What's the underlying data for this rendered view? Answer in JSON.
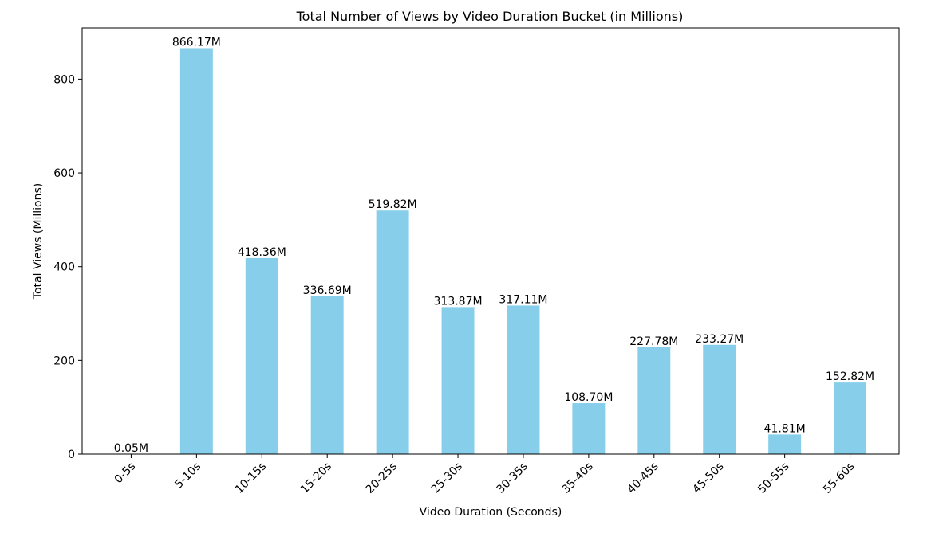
{
  "chart_data": {
    "type": "bar",
    "title": "Total Number of Views by Video Duration Bucket (in Millions)",
    "xlabel": "Video Duration (Seconds)",
    "ylabel": "Total Views (Millions)",
    "categories": [
      "0-5s",
      "5-10s",
      "10-15s",
      "15-20s",
      "20-25s",
      "25-30s",
      "30-35s",
      "35-40s",
      "40-45s",
      "45-50s",
      "50-55s",
      "55-60s"
    ],
    "values": [
      0.05,
      866.17,
      418.36,
      336.69,
      519.82,
      313.87,
      317.11,
      108.7,
      227.78,
      233.27,
      41.81,
      152.82
    ],
    "data_labels": [
      "0.05M",
      "866.17M",
      "418.36M",
      "336.69M",
      "519.82M",
      "313.87M",
      "317.11M",
      "108.70M",
      "227.78M",
      "233.27M",
      "41.81M",
      "152.82M"
    ],
    "ylim": [
      0,
      909.48
    ],
    "yticks": [
      0,
      200,
      400,
      600,
      800
    ],
    "ytick_labels": [
      "0",
      "200",
      "400",
      "600",
      "800"
    ],
    "grid": false,
    "legend": "none",
    "bar_color": "#87CEEB"
  }
}
